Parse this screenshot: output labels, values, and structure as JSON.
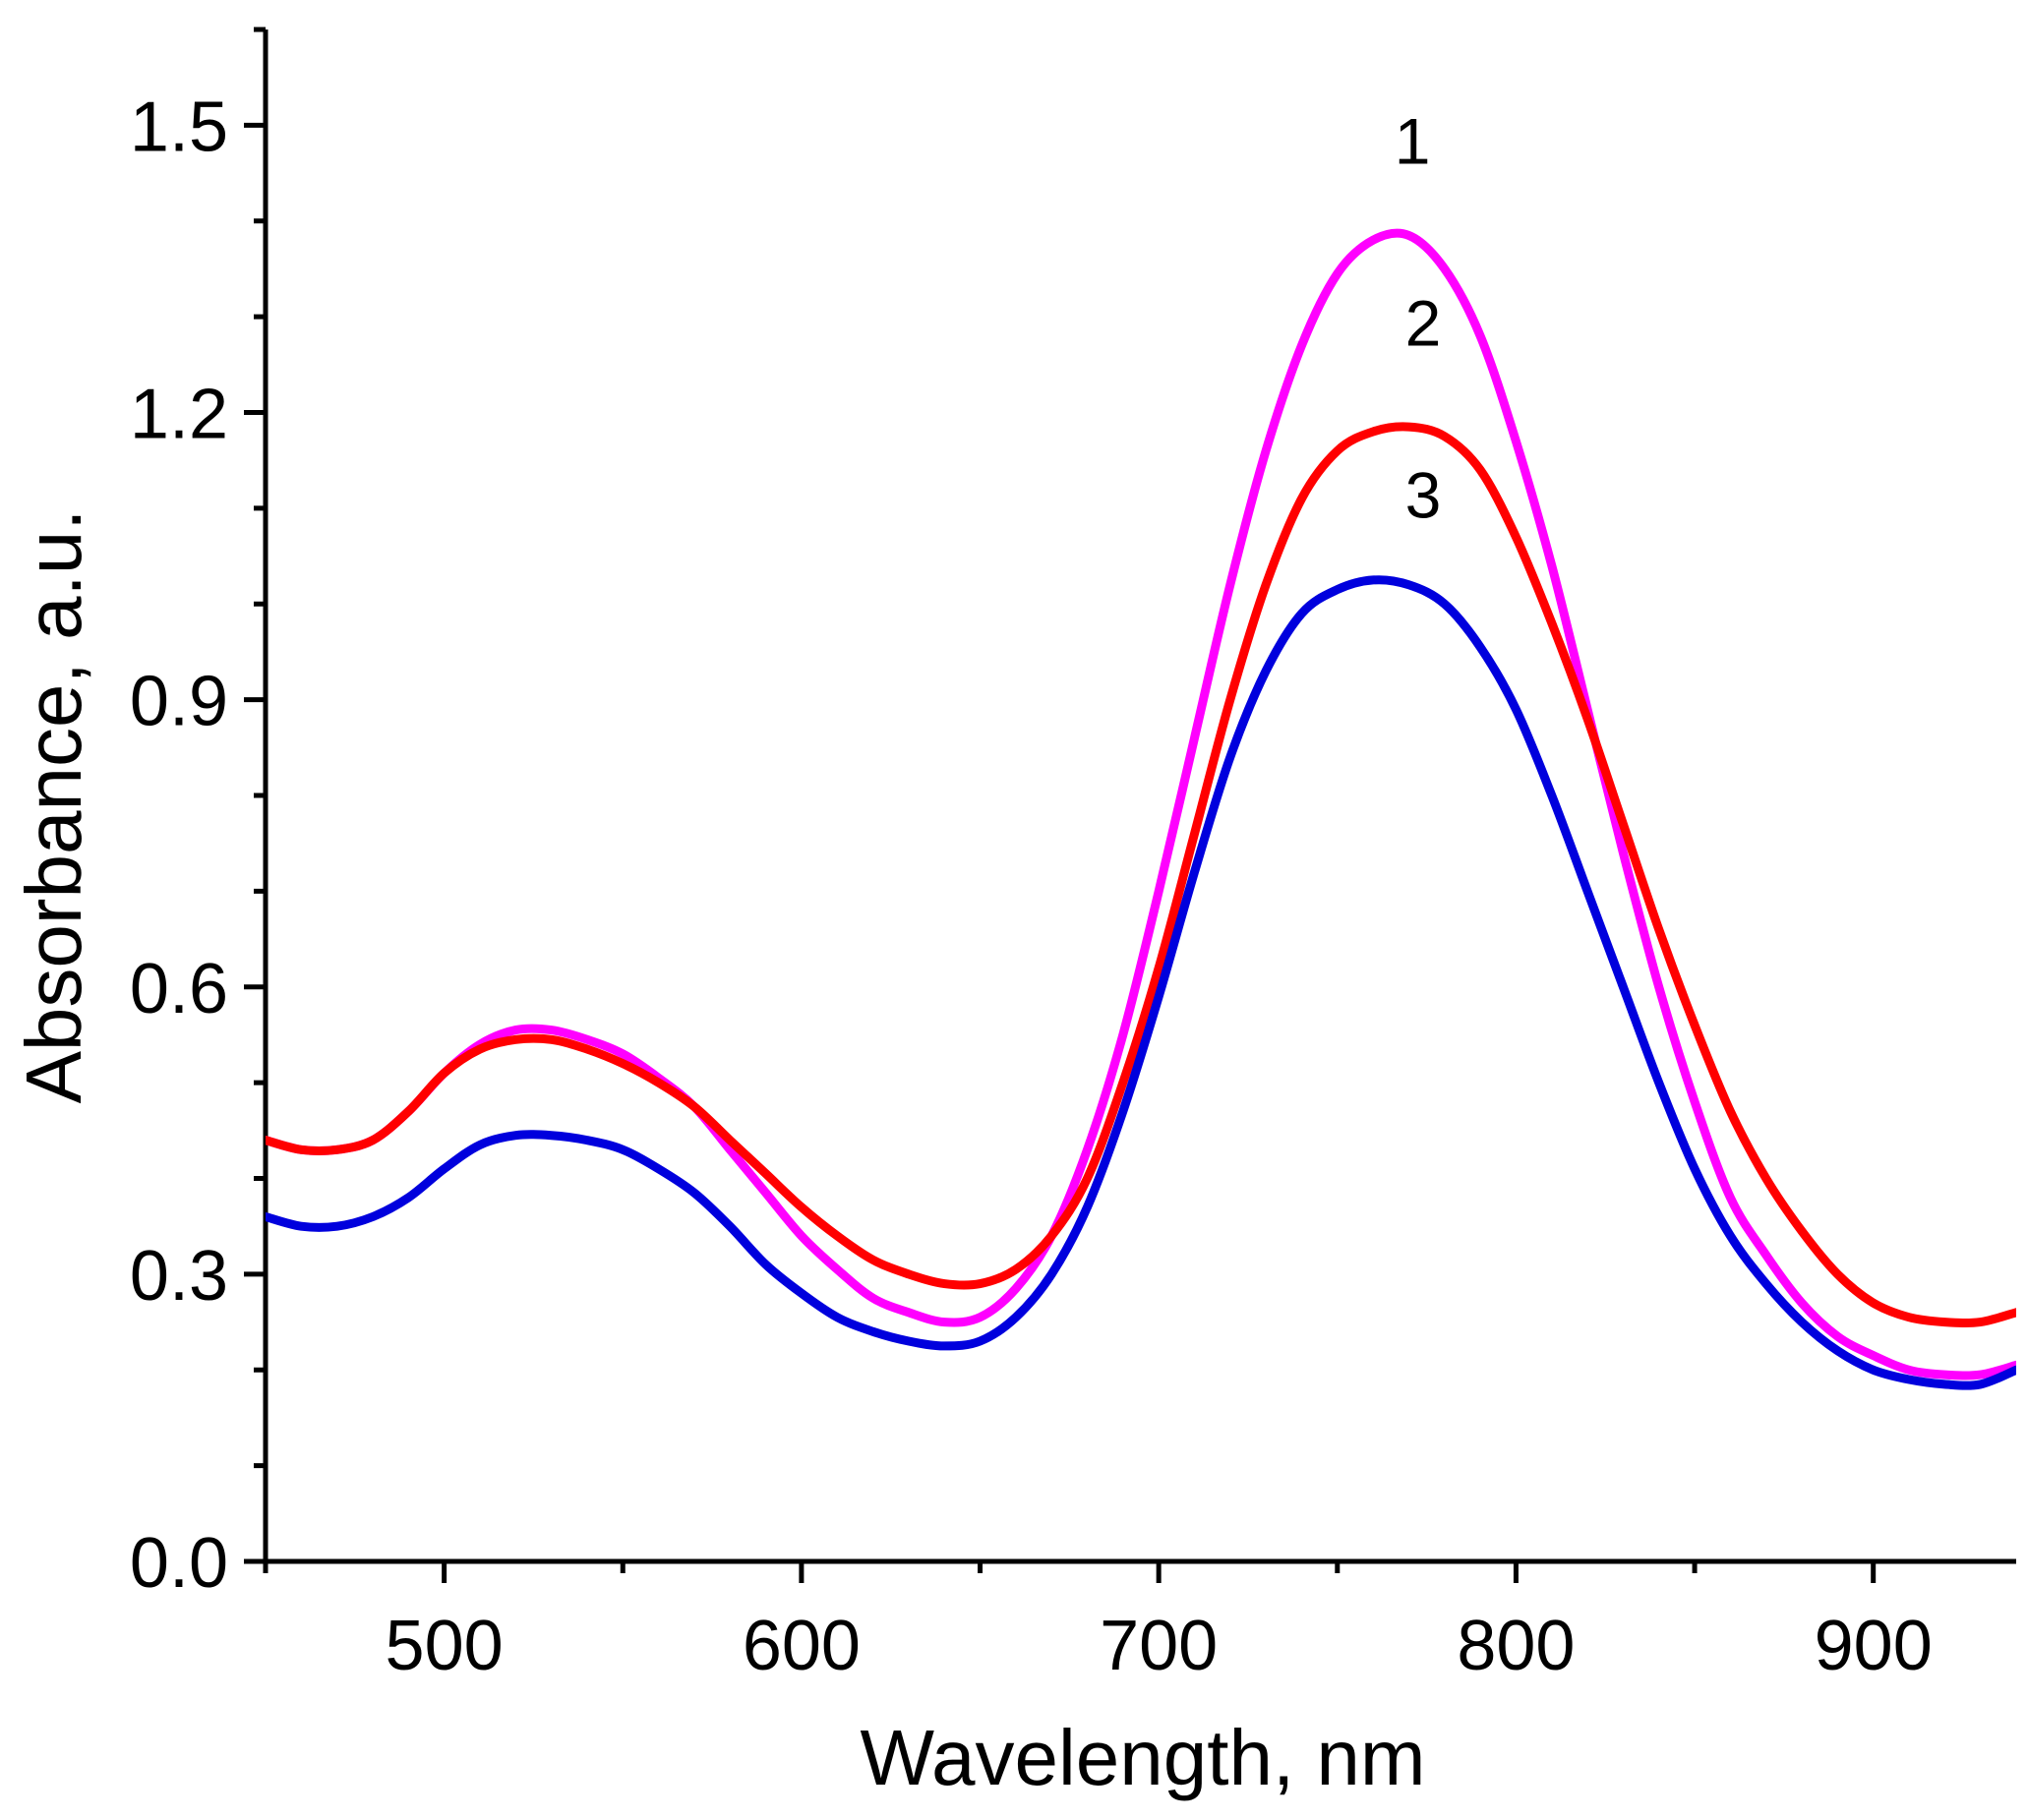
{
  "chart_data": {
    "type": "line",
    "title": "",
    "xlabel": "Wavelength, nm",
    "ylabel": "Absorbance, a.u.",
    "xlim": [
      450,
      940
    ],
    "ylim": [
      0.0,
      1.6
    ],
    "x_ticks": [
      500,
      600,
      700,
      800,
      900
    ],
    "x_tick_labels": [
      "500",
      "600",
      "700",
      "800",
      "900"
    ],
    "y_ticks": [
      0.0,
      0.3,
      0.6,
      0.9,
      1.2,
      1.5
    ],
    "y_tick_labels": [
      "0.0",
      "0.3",
      "0.6",
      "0.9",
      "1.2",
      "1.5"
    ],
    "grid": false,
    "legend": "none",
    "series": [
      {
        "name": "1",
        "label": "1",
        "color": "#ff00ff",
        "label_pos": [
          771,
          1.46
        ],
        "x": [
          450,
          460,
          470,
          480,
          490,
          500,
          510,
          520,
          530,
          540,
          550,
          560,
          570,
          580,
          590,
          600,
          610,
          620,
          630,
          640,
          650,
          660,
          670,
          680,
          690,
          700,
          710,
          720,
          730,
          740,
          750,
          760,
          770,
          780,
          790,
          800,
          810,
          820,
          830,
          840,
          850,
          860,
          870,
          880,
          890,
          900,
          910,
          920,
          930,
          940
        ],
        "values": [
          0.44,
          0.43,
          0.43,
          0.44,
          0.47,
          0.51,
          0.54,
          0.555,
          0.555,
          0.545,
          0.53,
          0.505,
          0.475,
          0.43,
          0.385,
          0.34,
          0.305,
          0.275,
          0.26,
          0.25,
          0.255,
          0.285,
          0.34,
          0.43,
          0.55,
          0.7,
          0.86,
          1.02,
          1.16,
          1.27,
          1.345,
          1.38,
          1.385,
          1.35,
          1.28,
          1.17,
          1.04,
          0.89,
          0.74,
          0.6,
          0.48,
          0.38,
          0.32,
          0.27,
          0.235,
          0.215,
          0.2,
          0.195,
          0.195,
          0.205
        ]
      },
      {
        "name": "2",
        "label": "2",
        "color": "#ff0000",
        "label_pos": [
          774,
          1.27
        ],
        "x": [
          450,
          460,
          470,
          480,
          490,
          500,
          510,
          520,
          530,
          540,
          550,
          560,
          570,
          580,
          590,
          600,
          610,
          620,
          630,
          640,
          650,
          660,
          670,
          680,
          690,
          700,
          710,
          720,
          730,
          740,
          750,
          760,
          770,
          780,
          790,
          800,
          810,
          820,
          830,
          840,
          850,
          860,
          870,
          880,
          890,
          900,
          910,
          920,
          930,
          940
        ],
        "values": [
          0.44,
          0.43,
          0.43,
          0.44,
          0.47,
          0.51,
          0.535,
          0.545,
          0.545,
          0.535,
          0.52,
          0.5,
          0.475,
          0.44,
          0.405,
          0.37,
          0.34,
          0.315,
          0.3,
          0.29,
          0.29,
          0.305,
          0.34,
          0.4,
          0.5,
          0.62,
          0.76,
          0.9,
          1.02,
          1.11,
          1.16,
          1.18,
          1.185,
          1.175,
          1.14,
          1.07,
          0.98,
          0.88,
          0.77,
          0.66,
          0.56,
          0.47,
          0.4,
          0.345,
          0.3,
          0.27,
          0.255,
          0.25,
          0.25,
          0.26
        ]
      },
      {
        "name": "3",
        "label": "3",
        "color": "#0000dd",
        "label_pos": [
          774,
          1.09
        ],
        "x": [
          450,
          460,
          470,
          480,
          490,
          500,
          510,
          520,
          530,
          540,
          550,
          560,
          570,
          580,
          590,
          600,
          610,
          620,
          630,
          640,
          650,
          660,
          670,
          680,
          690,
          700,
          710,
          720,
          730,
          740,
          750,
          760,
          770,
          780,
          790,
          800,
          810,
          820,
          830,
          840,
          850,
          860,
          870,
          880,
          890,
          900,
          910,
          920,
          930,
          940
        ],
        "values": [
          0.36,
          0.35,
          0.35,
          0.36,
          0.38,
          0.41,
          0.435,
          0.445,
          0.445,
          0.44,
          0.43,
          0.41,
          0.385,
          0.35,
          0.31,
          0.28,
          0.255,
          0.24,
          0.23,
          0.225,
          0.23,
          0.255,
          0.3,
          0.37,
          0.47,
          0.59,
          0.72,
          0.84,
          0.93,
          0.99,
          1.015,
          1.025,
          1.02,
          1.0,
          0.955,
          0.89,
          0.8,
          0.7,
          0.6,
          0.5,
          0.41,
          0.34,
          0.29,
          0.25,
          0.22,
          0.2,
          0.19,
          0.185,
          0.185,
          0.2
        ]
      }
    ]
  }
}
